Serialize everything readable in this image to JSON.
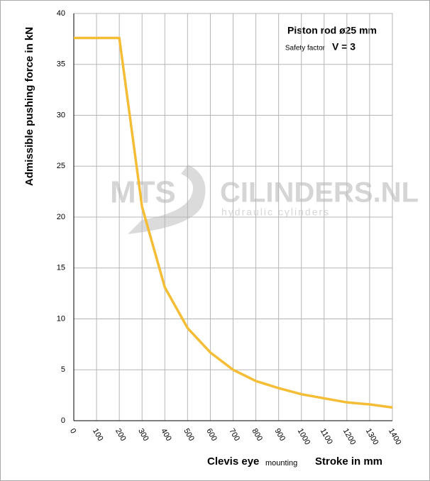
{
  "chart_data": {
    "type": "line",
    "title": "Piston rod ø25 mm",
    "safety_factor_label": "Safety factor",
    "safety_factor_value": "V = 3",
    "x_label": "Clevis eye",
    "x_label_note": "mounting",
    "x_label_unit": "Stroke in mm",
    "ylabel": "Admissible pushing  force in kN",
    "watermark": [
      "MTS",
      "CILINDERS.NL",
      "hydraulic cylinders"
    ],
    "x": [
      0,
      200,
      300,
      400,
      500,
      600,
      700,
      800,
      900,
      1000,
      1100,
      1200,
      1300,
      1400
    ],
    "series": [
      {
        "name": "Piston rod ø25 mm",
        "color": "#f5bd35",
        "values": [
          37.6,
          37.6,
          21.0,
          13.1,
          9.1,
          6.7,
          5.0,
          3.9,
          3.2,
          2.6,
          2.2,
          1.8,
          1.6,
          1.3
        ]
      }
    ],
    "xlim": [
      0,
      1400
    ],
    "xticks": [
      0,
      100,
      200,
      300,
      400,
      500,
      600,
      700,
      800,
      900,
      1000,
      1100,
      1200,
      1300,
      1400
    ],
    "ylim": [
      0,
      40
    ],
    "yticks": [
      0,
      5,
      10,
      15,
      20,
      25,
      30,
      35,
      40
    ],
    "grid": true
  }
}
